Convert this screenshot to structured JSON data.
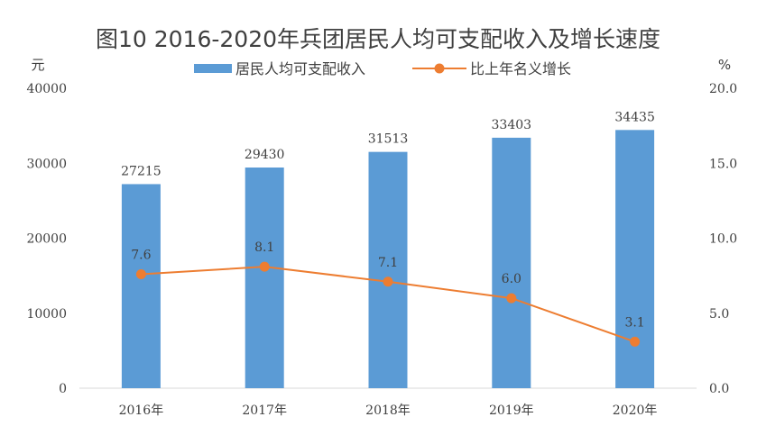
{
  "chart_data": {
    "type": "bar",
    "title": "图10 2016-2020年兵团居民人均可支配收入及增长速度",
    "left_axis_unit": "元",
    "right_axis_unit": "%",
    "categories": [
      "2016年",
      "2017年",
      "2018年",
      "2019年",
      "2020年"
    ],
    "left_ticks": [
      "0",
      "10000",
      "20000",
      "30000",
      "40000"
    ],
    "right_ticks": [
      "0.0",
      "5.0",
      "10.0",
      "15.0",
      "20.0"
    ],
    "ylim_left": [
      0,
      40000
    ],
    "ylim_right": [
      0,
      20
    ],
    "legend_position": "top-center",
    "series": [
      {
        "name": "居民人均可支配收入",
        "type": "bar",
        "axis": "left",
        "color": "#5B9BD5",
        "values": [
          27215,
          29430,
          31513,
          33403,
          34435
        ],
        "labels": [
          "27215",
          "29430",
          "31513",
          "33403",
          "34435"
        ]
      },
      {
        "name": "比上年名义增长",
        "type": "line",
        "axis": "right",
        "color": "#ED7D31",
        "values": [
          7.6,
          8.1,
          7.1,
          6.0,
          3.1
        ],
        "labels": [
          "7.6",
          "8.1",
          "7.1",
          "6.0",
          "3.1"
        ]
      }
    ]
  }
}
